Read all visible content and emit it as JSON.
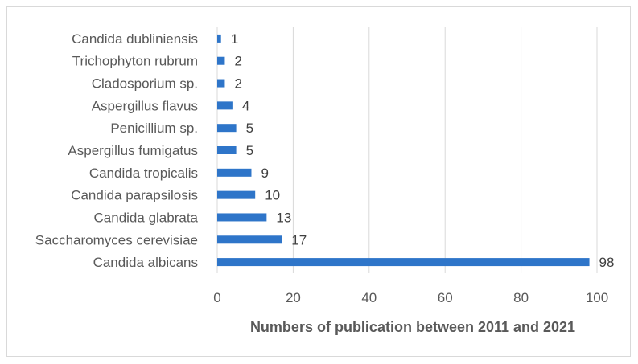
{
  "chart_data": {
    "type": "bar",
    "orientation": "horizontal",
    "categories": [
      "Candida dubliniensis",
      "Trichophyton rubrum",
      "Cladosporium sp.",
      "Aspergillus flavus",
      "Penicillium sp.",
      "Aspergillus fumigatus",
      "Candida tropicalis",
      "Candida parapsilosis",
      "Candida glabrata",
      "Saccharomyces cerevisiae",
      "Candida albicans"
    ],
    "values": [
      1,
      2,
      2,
      4,
      5,
      5,
      9,
      10,
      13,
      17,
      98
    ],
    "xlabel": "Numbers of publication between 2011 and 2021",
    "ylabel": "",
    "xlim": [
      0,
      100
    ],
    "xticks": [
      0,
      20,
      40,
      60,
      80,
      100
    ],
    "grid": "vertical",
    "data_labels": true,
    "colors": {
      "bar": "#2e75c9",
      "grid": "#d9d9d9",
      "text": "#595959"
    }
  }
}
